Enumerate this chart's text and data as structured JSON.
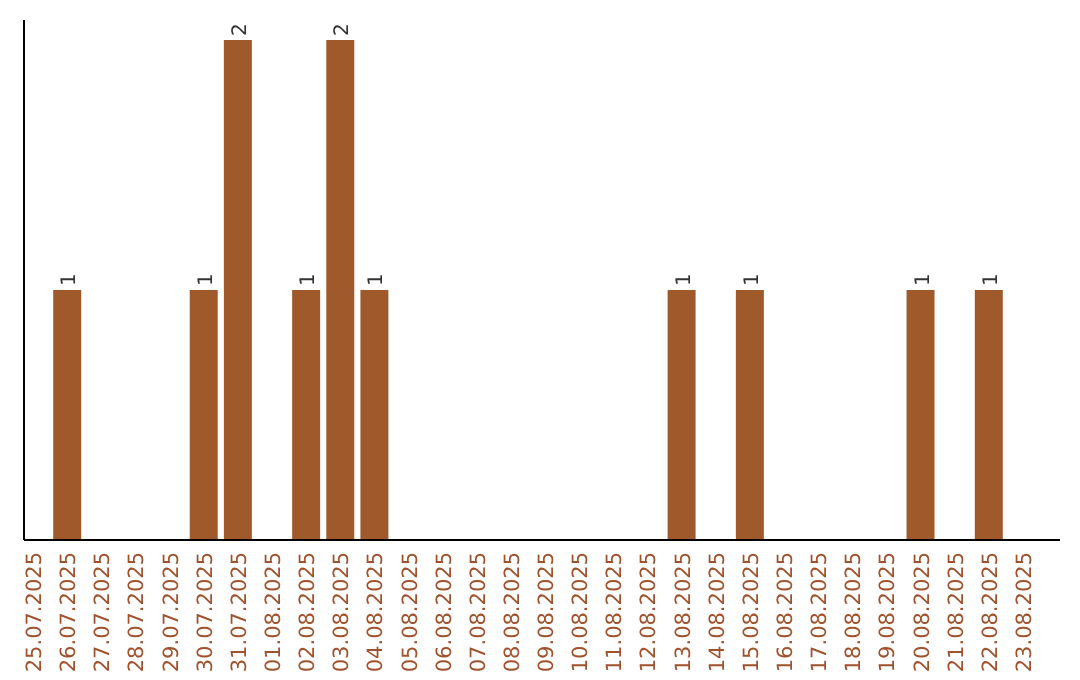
{
  "chart_data": {
    "type": "bar",
    "categories": [
      "25.07.2025",
      "26.07.2025",
      "27.07.2025",
      "28.07.2025",
      "29.07.2025",
      "30.07.2025",
      "31.07.2025",
      "01.08.2025",
      "02.08.2025",
      "03.08.2025",
      "04.08.2025",
      "05.08.2025",
      "06.08.2025",
      "07.08.2025",
      "08.08.2025",
      "09.08.2025",
      "10.08.2025",
      "11.08.2025",
      "12.08.2025",
      "13.08.2025",
      "14.08.2025",
      "15.08.2025",
      "16.08.2025",
      "17.08.2025",
      "18.08.2025",
      "19.08.2025",
      "20.08.2025",
      "21.08.2025",
      "22.08.2025",
      "23.08.2025"
    ],
    "values": [
      0,
      1,
      0,
      0,
      0,
      1,
      2,
      0,
      1,
      2,
      1,
      0,
      0,
      0,
      0,
      0,
      0,
      0,
      0,
      1,
      0,
      1,
      0,
      0,
      0,
      0,
      1,
      0,
      1,
      0
    ],
    "value_labels": [
      null,
      "1",
      null,
      null,
      null,
      "1",
      "2",
      null,
      "1",
      "2",
      "1",
      null,
      null,
      null,
      null,
      null,
      null,
      null,
      null,
      "1",
      null,
      "1",
      null,
      null,
      null,
      null,
      "1",
      null,
      "1",
      null
    ],
    "color": "#a0592a",
    "ylim": [
      0,
      2.08
    ],
    "tick_labels": "x"
  }
}
